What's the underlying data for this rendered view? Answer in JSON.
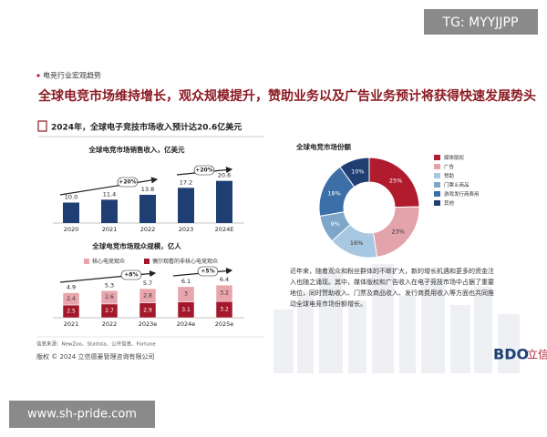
{
  "watermark": "TG: MYYJJPP",
  "footer_url": "www.sh-pride.com",
  "section": "电竞行业宏观趋势",
  "headline": "全球电竞市场维持增长，观众规模提升，赞助业务以及广告业务预计将获得快速发展势头",
  "subheadline": "2024年，全球电子竞技市场收入预计达20.6亿美元",
  "chart_data": [
    {
      "type": "bar",
      "title": "全球电竞市场销售收入，亿美元",
      "categories": [
        "2020",
        "2021",
        "2022",
        "2023",
        "2024E"
      ],
      "values": [
        10.0,
        11.4,
        13.8,
        17.2,
        20.6
      ],
      "value_labels": [
        "10.0",
        "11.4",
        "13.8",
        "17.2",
        "20.6"
      ],
      "color": "#1f3f73",
      "annotations": [
        "+20%",
        "+20%"
      ]
    },
    {
      "type": "stacked-bar",
      "title": "全球电竞市场观众规模，亿人",
      "categories": [
        "2021",
        "2022",
        "2023e",
        "2024e",
        "2025e"
      ],
      "series": [
        {
          "name": "核心电竞观众",
          "color": "#e8a5ad",
          "values": [
            2.4,
            2.6,
            2.8,
            3.0,
            3.2
          ]
        },
        {
          "name": "偶尔观看的非核心电竞观众",
          "color": "#a3182a",
          "values": [
            2.5,
            2.7,
            2.9,
            3.1,
            3.2
          ]
        }
      ],
      "total_labels": [
        "4.9",
        "5.3",
        "5.7",
        "6.1",
        "6.4"
      ],
      "annotations": [
        "+8%",
        "+5%"
      ]
    },
    {
      "type": "donut",
      "title": "全球电竞市场份额",
      "categories": [
        "媒体版权",
        "广告",
        "赞助",
        "门票＆商品",
        "游戏发行商费用",
        "其他"
      ],
      "values": [
        25,
        23,
        16,
        9,
        18,
        10
      ],
      "value_labels": [
        "25%",
        "23%",
        "16%",
        "9%",
        "18%",
        "10%"
      ],
      "colors": [
        "#b01c2e",
        "#e3a3ab",
        "#a8c7e0",
        "#7ea6c8",
        "#3c6ea8",
        "#1f3f73"
      ]
    }
  ],
  "paragraph": "近年来，随着观众和粉丝群体的不断扩大，新的增长机遇和更多的资金注入也随之涌现。其中，媒体版权和广告收入在电子竞技市场中占据了重要地位，同时赞助收入、门票及商品收入、发行商费用收入等方面也共同推动全球电竞市场份额增长。",
  "source": "信息来源：NewZoo、Statista、公开信息、Fortune",
  "copyright": "版权 © 2024 立信德豪管理咨询有限公司",
  "logo": "BDO",
  "logo_cn": "立信"
}
